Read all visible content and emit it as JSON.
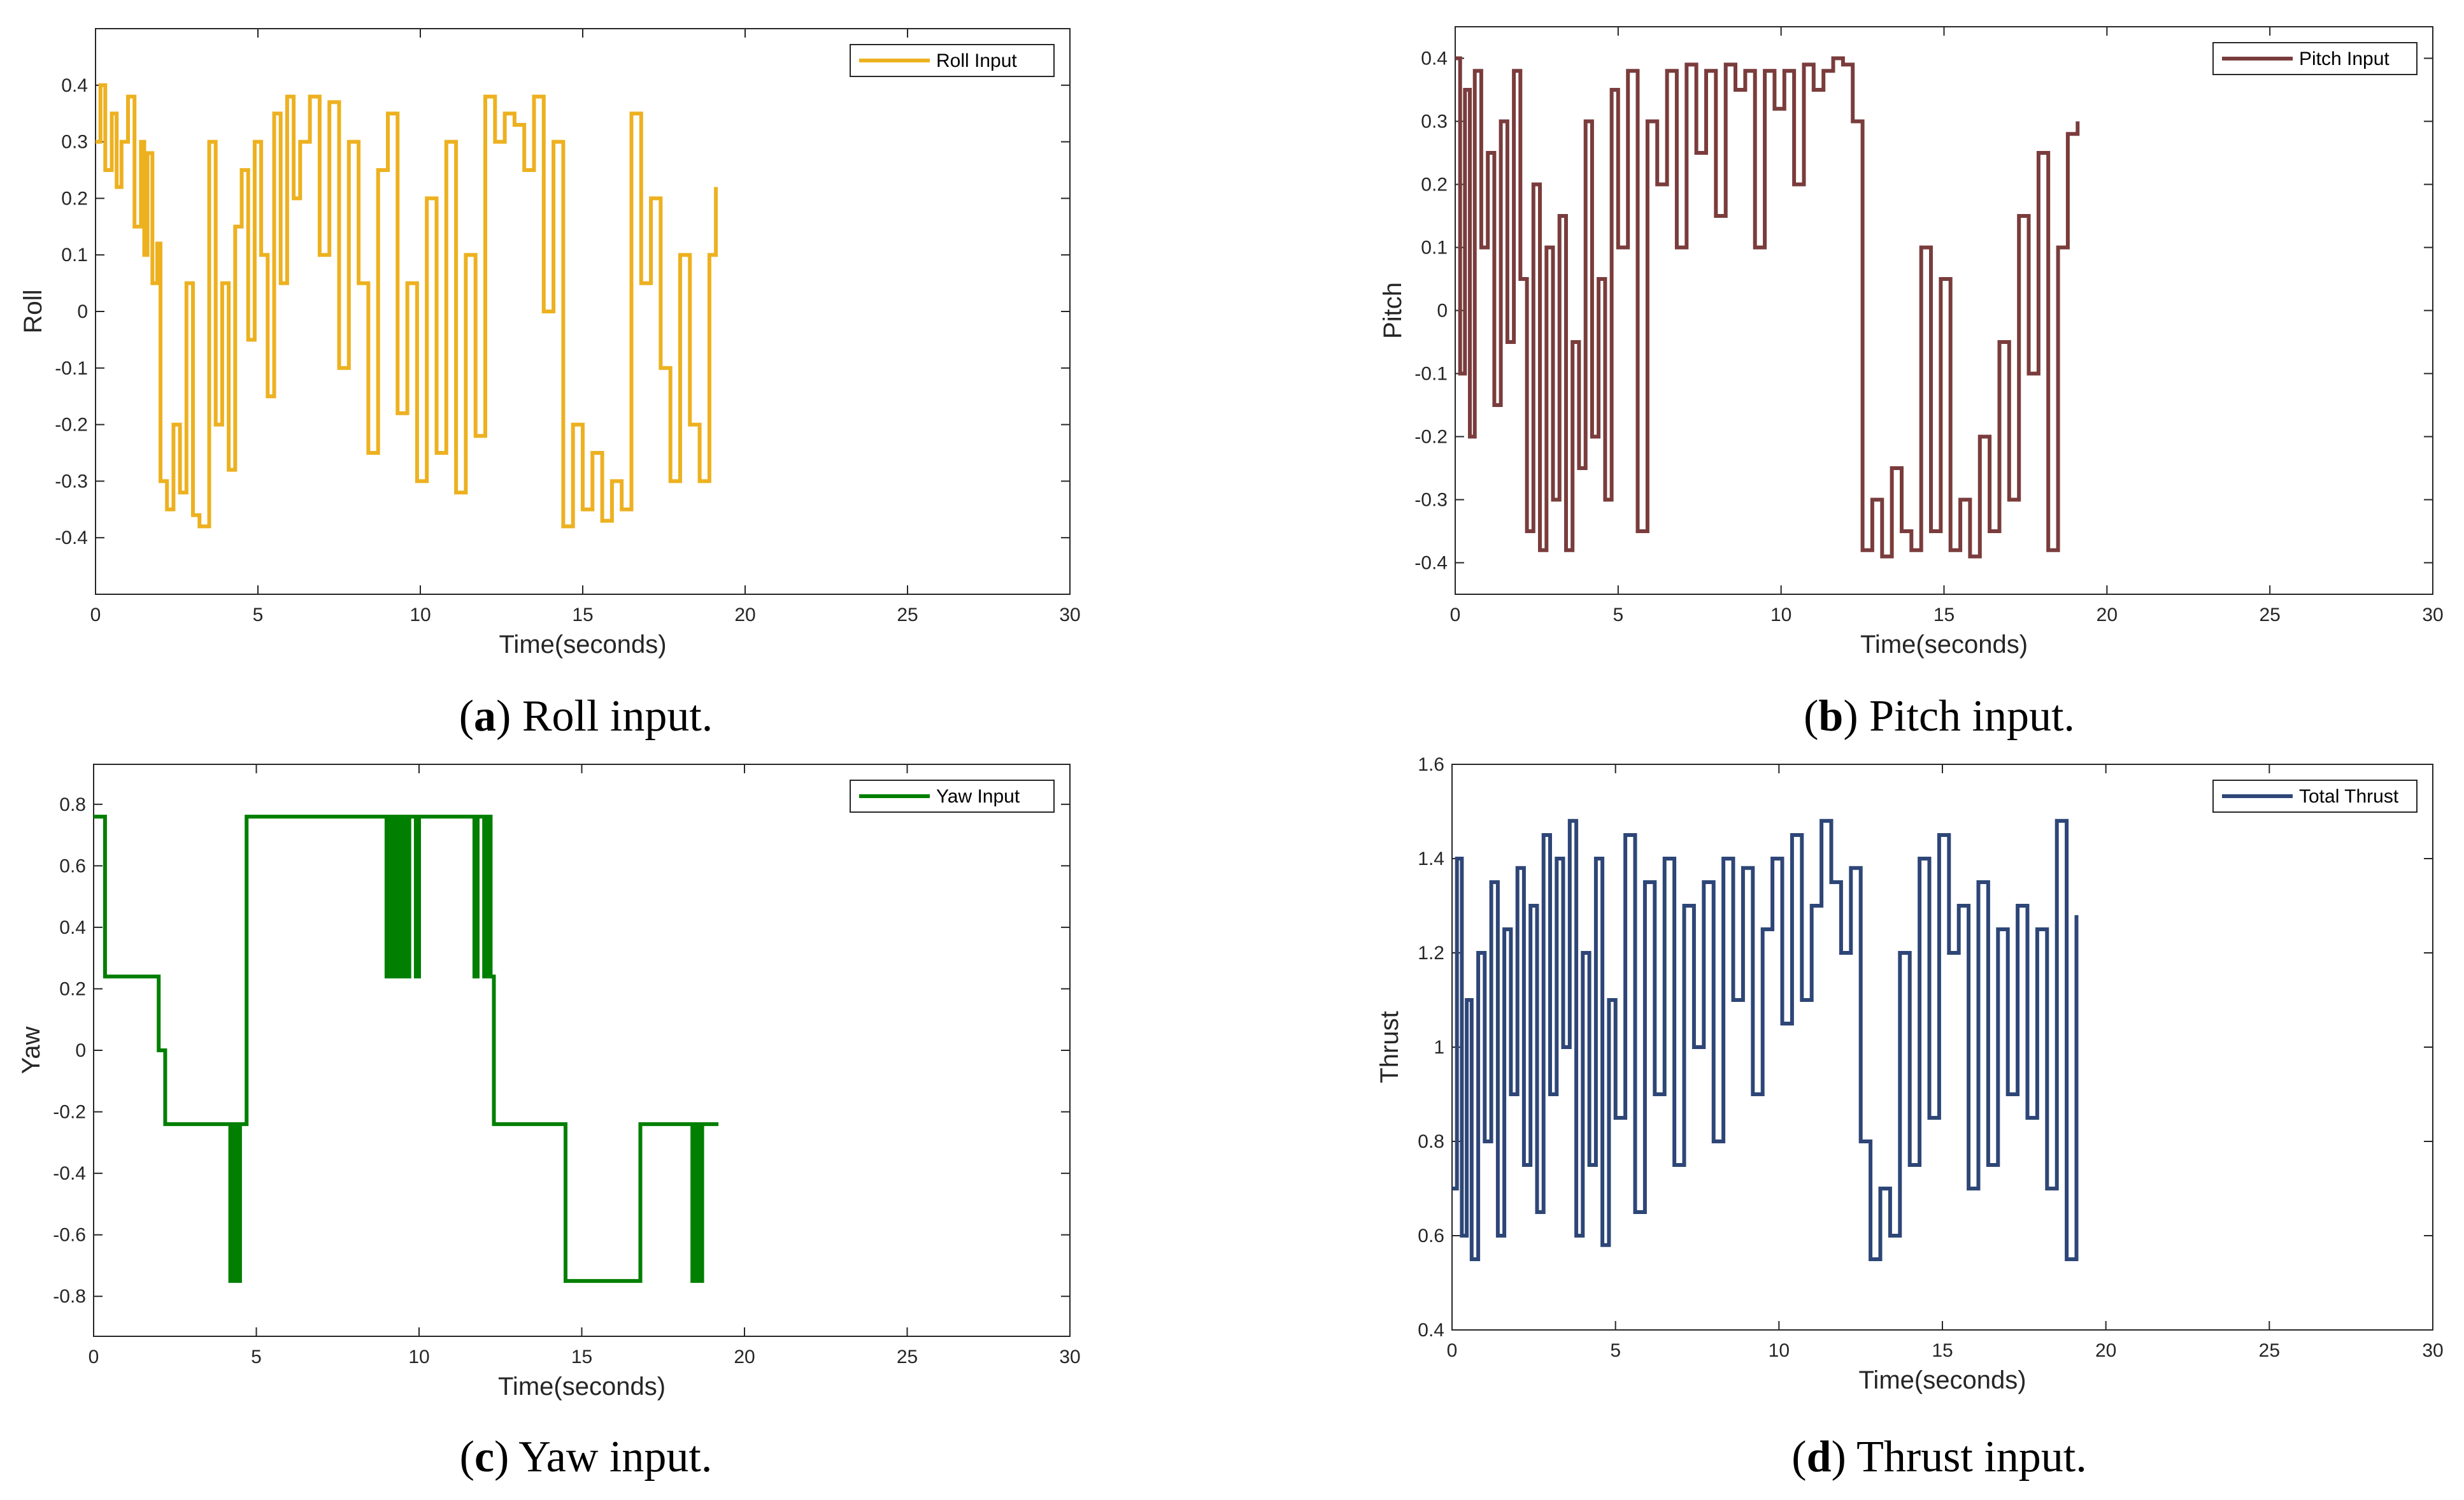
{
  "chart_data": [
    {
      "type": "line",
      "id": "roll",
      "caption_letter": "a",
      "caption_rest": " Roll input.",
      "xlabel": "Time(seconds)",
      "ylabel": "Roll",
      "legend": "Roll Input",
      "color": "#EDB120",
      "xlim": [
        0,
        30
      ],
      "ylim": [
        -0.5,
        0.5
      ],
      "xticks": [
        0,
        5,
        10,
        15,
        20,
        25,
        30
      ],
      "yticks": [
        -0.4,
        -0.3,
        -0.2,
        -0.1,
        0,
        0.1,
        0.2,
        0.3,
        0.4
      ],
      "ytick_labels": [
        "-0.4",
        "-0.3",
        "-0.2",
        "-0.1",
        "0",
        "0.1",
        "0.2",
        "0.3",
        "0.4"
      ],
      "x": [
        0,
        0.15,
        0.3,
        0.5,
        0.65,
        0.8,
        1.0,
        1.2,
        1.4,
        1.5,
        1.6,
        1.75,
        1.9,
        2.0,
        2.2,
        2.4,
        2.6,
        2.8,
        3.0,
        3.2,
        3.5,
        3.7,
        3.9,
        4.1,
        4.3,
        4.5,
        4.7,
        4.9,
        5.1,
        5.3,
        5.5,
        5.7,
        5.9,
        6.1,
        6.3,
        6.6,
        6.9,
        7.2,
        7.5,
        7.8,
        8.1,
        8.4,
        8.7,
        9.0,
        9.3,
        9.6,
        9.9,
        10.2,
        10.5,
        10.8,
        11.1,
        11.4,
        11.7,
        12.0,
        12.3,
        12.6,
        12.9,
        13.2,
        13.5,
        13.8,
        14.1,
        14.4,
        14.7,
        15.0,
        15.3,
        15.6,
        15.9,
        16.2,
        16.5,
        16.8,
        17.1,
        17.4,
        17.7,
        18.0,
        18.3,
        18.6,
        18.9,
        19.1
      ],
      "y": [
        0.3,
        0.4,
        0.25,
        0.35,
        0.22,
        0.3,
        0.38,
        0.15,
        0.3,
        0.1,
        0.28,
        0.05,
        0.12,
        -0.3,
        -0.35,
        -0.2,
        -0.32,
        0.05,
        -0.36,
        -0.38,
        0.3,
        -0.2,
        0.05,
        -0.28,
        0.15,
        0.25,
        -0.05,
        0.3,
        0.1,
        -0.15,
        0.35,
        0.05,
        0.38,
        0.2,
        0.3,
        0.38,
        0.1,
        0.37,
        -0.1,
        0.3,
        0.05,
        -0.25,
        0.25,
        0.35,
        -0.18,
        0.05,
        -0.3,
        0.2,
        -0.25,
        0.3,
        -0.32,
        0.1,
        -0.22,
        0.38,
        0.3,
        0.35,
        0.33,
        0.25,
        0.38,
        0.0,
        0.3,
        -0.38,
        -0.2,
        -0.35,
        -0.25,
        -0.37,
        -0.3,
        -0.35,
        0.35,
        0.05,
        0.2,
        -0.1,
        -0.3,
        0.1,
        -0.2,
        -0.3,
        0.1,
        0.22
      ]
    },
    {
      "type": "line",
      "id": "pitch",
      "caption_letter": "b",
      "caption_rest": " Pitch input.",
      "xlabel": "Time(seconds)",
      "ylabel": "Pitch",
      "legend": "Pitch Input",
      "color": "#7A3C3C",
      "xlim": [
        0,
        30
      ],
      "ylim": [
        -0.45,
        0.45
      ],
      "xticks": [
        0,
        5,
        10,
        15,
        20,
        25,
        30
      ],
      "yticks": [
        -0.4,
        -0.3,
        -0.2,
        -0.1,
        0,
        0.1,
        0.2,
        0.3,
        0.4
      ],
      "ytick_labels": [
        "-0.4",
        "-0.3",
        "-0.2",
        "-0.1",
        "0",
        "0.1",
        "0.2",
        "0.3",
        "0.4"
      ],
      "x": [
        0,
        0.15,
        0.3,
        0.45,
        0.6,
        0.8,
        1.0,
        1.2,
        1.4,
        1.6,
        1.8,
        2.0,
        2.2,
        2.4,
        2.6,
        2.8,
        3.0,
        3.2,
        3.4,
        3.6,
        3.8,
        4.0,
        4.2,
        4.4,
        4.6,
        4.8,
        5.0,
        5.3,
        5.6,
        5.9,
        6.2,
        6.5,
        6.8,
        7.1,
        7.4,
        7.7,
        8.0,
        8.3,
        8.6,
        8.9,
        9.2,
        9.5,
        9.8,
        10.1,
        10.4,
        10.7,
        11.0,
        11.3,
        11.6,
        11.9,
        12.2,
        12.5,
        12.8,
        13.1,
        13.4,
        13.7,
        14.0,
        14.3,
        14.6,
        14.9,
        15.2,
        15.5,
        15.8,
        16.1,
        16.4,
        16.7,
        17.0,
        17.3,
        17.6,
        17.9,
        18.2,
        18.5,
        18.8,
        19.1
      ],
      "y": [
        0.4,
        -0.1,
        0.35,
        -0.2,
        0.38,
        0.1,
        0.25,
        -0.15,
        0.3,
        -0.05,
        0.38,
        0.05,
        -0.35,
        0.2,
        -0.38,
        0.1,
        -0.3,
        0.15,
        -0.38,
        -0.05,
        -0.25,
        0.3,
        -0.2,
        0.05,
        -0.3,
        0.35,
        0.1,
        0.38,
        -0.35,
        0.3,
        0.2,
        0.38,
        0.1,
        0.39,
        0.25,
        0.38,
        0.15,
        0.39,
        0.35,
        0.38,
        0.1,
        0.38,
        0.32,
        0.38,
        0.2,
        0.39,
        0.35,
        0.38,
        0.4,
        0.39,
        0.3,
        -0.38,
        -0.3,
        -0.39,
        -0.25,
        -0.35,
        -0.38,
        0.1,
        -0.35,
        0.05,
        -0.38,
        -0.3,
        -0.39,
        -0.2,
        -0.35,
        -0.05,
        -0.3,
        0.15,
        -0.1,
        0.25,
        -0.38,
        0.1,
        0.28,
        0.3
      ]
    },
    {
      "type": "line",
      "id": "yaw",
      "caption_letter": "c",
      "caption_rest": " Yaw input.",
      "xlabel": "Time(seconds)",
      "ylabel": "Yaw",
      "legend": "Yaw Input",
      "color": "#007F00",
      "xlim": [
        0,
        30
      ],
      "ylim": [
        -0.93,
        0.93
      ],
      "xticks": [
        0,
        5,
        10,
        15,
        20,
        25,
        30
      ],
      "yticks": [
        -0.8,
        -0.6,
        -0.4,
        -0.2,
        0,
        0.2,
        0.4,
        0.6,
        0.8
      ],
      "ytick_labels": [
        "-0.8",
        "-0.6",
        "-0.4",
        "-0.2",
        "0",
        "0.2",
        "0.4",
        "0.6",
        "0.8"
      ],
      "x": [
        0,
        0.35,
        2.0,
        2.2,
        4.2,
        4.3,
        4.4,
        4.5,
        4.7,
        9.0,
        9.1,
        9.2,
        9.3,
        9.4,
        9.5,
        9.6,
        9.7,
        9.9,
        10.0,
        11.7,
        11.8,
        12.0,
        12.1,
        12.2,
        12.3,
        14.5,
        16.8,
        18.4,
        18.5,
        18.6,
        18.7,
        18.8,
        19.2
      ],
      "y": [
        0.76,
        0.24,
        0.0,
        -0.24,
        -0.75,
        -0.24,
        -0.75,
        -0.24,
        0.76,
        0.24,
        0.76,
        0.24,
        0.76,
        0.24,
        0.76,
        0.24,
        0.76,
        0.24,
        0.76,
        0.24,
        0.76,
        0.24,
        0.76,
        0.24,
        -0.24,
        -0.75,
        -0.24,
        -0.75,
        -0.24,
        -0.75,
        -0.24,
        -0.24,
        -0.24
      ]
    },
    {
      "type": "line",
      "id": "thrust",
      "caption_letter": "d",
      "caption_rest": " Thrust input.",
      "xlabel": "Time(seconds)",
      "ylabel": "Thrust",
      "legend": "Total Thrust",
      "color": "#2E4677",
      "xlim": [
        0,
        30
      ],
      "ylim": [
        0.4,
        1.6
      ],
      "xticks": [
        0,
        5,
        10,
        15,
        20,
        25,
        30
      ],
      "yticks": [
        0.4,
        0.6,
        0.8,
        1.0,
        1.2,
        1.4,
        1.6
      ],
      "ytick_labels": [
        "0.4",
        "0.6",
        "0.8",
        "1",
        "1.2",
        "1.4",
        "1.6"
      ],
      "x": [
        0,
        0.15,
        0.3,
        0.45,
        0.6,
        0.8,
        1.0,
        1.2,
        1.4,
        1.6,
        1.8,
        2.0,
        2.2,
        2.4,
        2.6,
        2.8,
        3.0,
        3.2,
        3.4,
        3.6,
        3.8,
        4.0,
        4.2,
        4.4,
        4.6,
        4.8,
        5.0,
        5.3,
        5.6,
        5.9,
        6.2,
        6.5,
        6.8,
        7.1,
        7.4,
        7.7,
        8.0,
        8.3,
        8.6,
        8.9,
        9.2,
        9.5,
        9.8,
        10.1,
        10.4,
        10.7,
        11.0,
        11.3,
        11.6,
        11.9,
        12.2,
        12.5,
        12.8,
        13.1,
        13.4,
        13.7,
        14.0,
        14.3,
        14.6,
        14.9,
        15.2,
        15.5,
        15.8,
        16.1,
        16.4,
        16.7,
        17.0,
        17.3,
        17.6,
        17.9,
        18.2,
        18.5,
        18.8,
        19.1
      ],
      "y": [
        0.7,
        1.4,
        0.6,
        1.1,
        0.55,
        1.2,
        0.8,
        1.35,
        0.6,
        1.25,
        0.9,
        1.38,
        0.75,
        1.3,
        0.65,
        1.45,
        0.9,
        1.4,
        1.0,
        1.48,
        0.6,
        1.2,
        0.75,
        1.4,
        0.58,
        1.1,
        0.85,
        1.45,
        0.65,
        1.35,
        0.9,
        1.4,
        0.75,
        1.3,
        1.0,
        1.35,
        0.8,
        1.4,
        1.1,
        1.38,
        0.9,
        1.25,
        1.4,
        1.05,
        1.45,
        1.1,
        1.3,
        1.48,
        1.35,
        1.2,
        1.38,
        0.8,
        0.55,
        0.7,
        0.6,
        1.2,
        0.75,
        1.4,
        0.85,
        1.45,
        1.2,
        1.3,
        0.7,
        1.35,
        0.75,
        1.25,
        0.9,
        1.3,
        0.85,
        1.25,
        0.7,
        1.48,
        0.55,
        1.28
      ]
    }
  ]
}
